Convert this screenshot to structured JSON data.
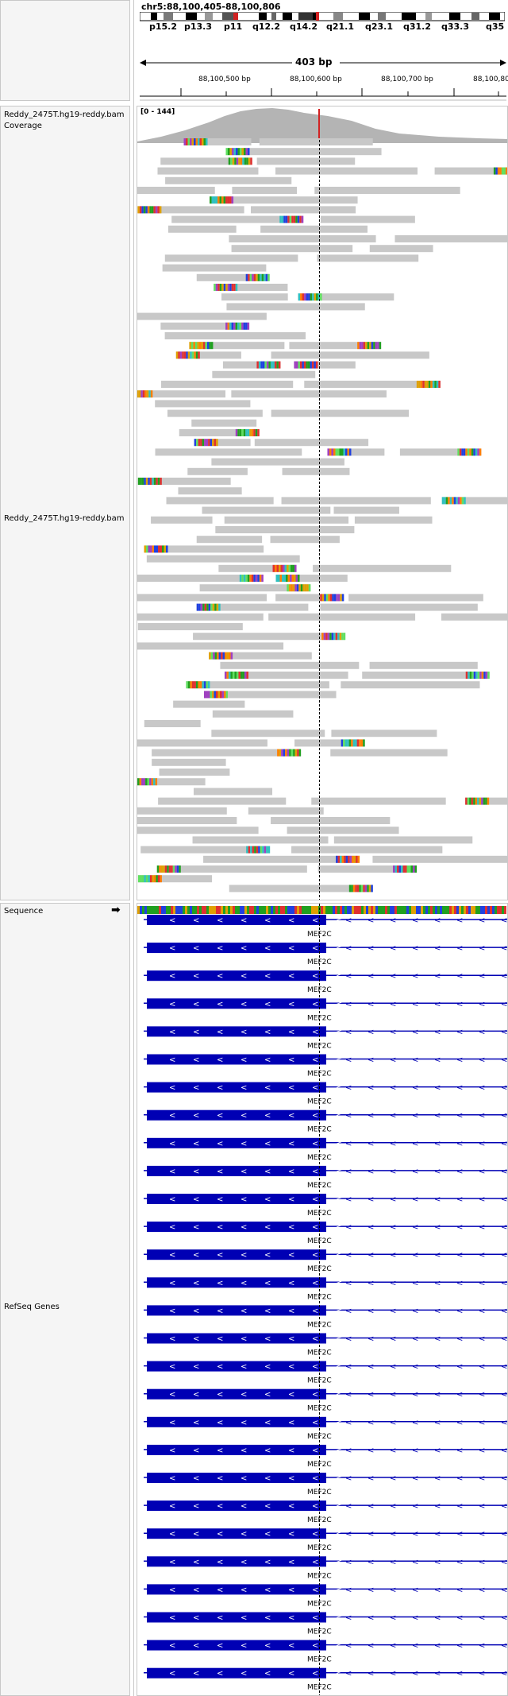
{
  "header": {
    "locus": "chr5:88,100,405-88,100,806",
    "span_label": "403 bp",
    "ideogram_bands": [
      "p15.2",
      "p13.3",
      "p11",
      "q12.2",
      "q14.2",
      "q21.1",
      "q23.1",
      "q31.2",
      "q33.3",
      "q35"
    ],
    "ruler_ticks": [
      "88,100,500 bp",
      "88,100,600 bp",
      "88,100,700 bp",
      "88,100,80"
    ]
  },
  "tracks": {
    "coverage_label": "Reddy_2475T.hg19-reddy.bam Coverage",
    "coverage_range": "[0 - 144]",
    "alignment_label": "Reddy_2475T.hg19-reddy.bam",
    "sequence_label": "Sequence",
    "sequence_arrow": "➡",
    "genes_label": "RefSeq Genes"
  },
  "gene": {
    "name": "MEF2C",
    "row_count": 28,
    "color": "#0000b4"
  },
  "colors": {
    "read": "#c8c8c8",
    "coverage": "#b4b4b4",
    "center_line": "#000000",
    "panel_bg": "#f5f5f5",
    "ideogram_red": "#d22222"
  }
}
